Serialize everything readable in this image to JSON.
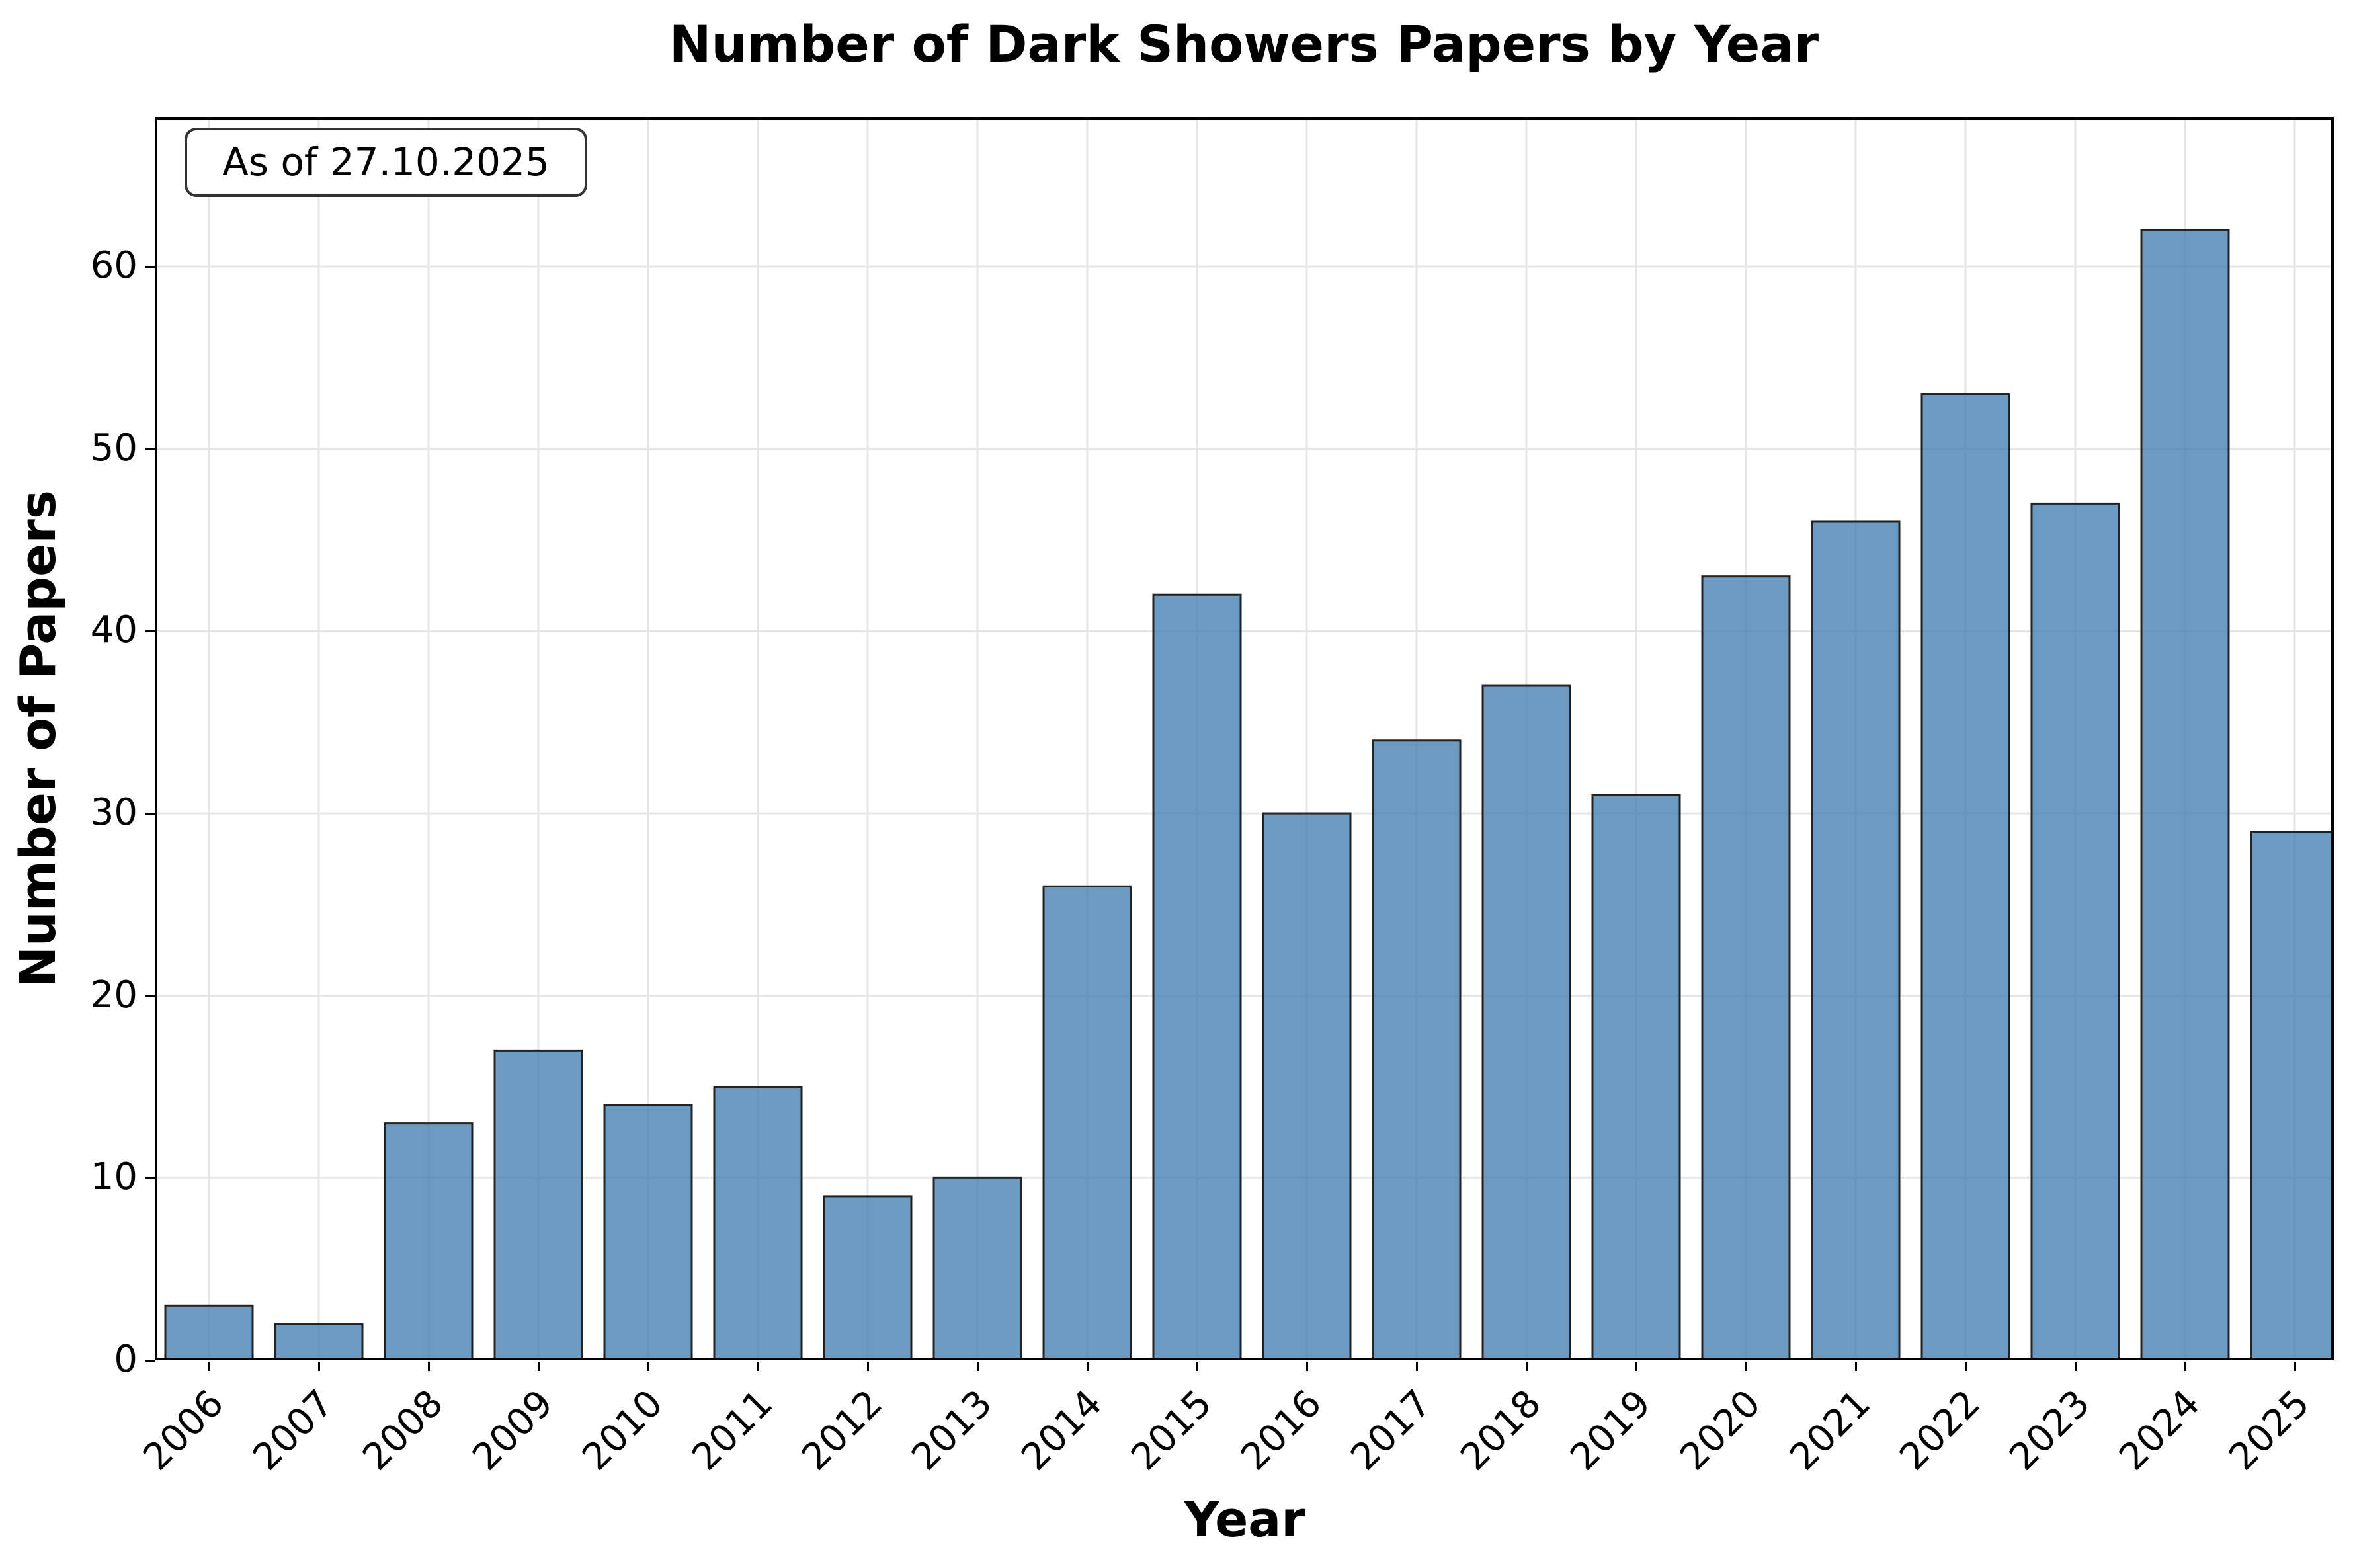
{
  "chart_data": {
    "type": "bar",
    "title": "Number of Dark Showers Papers by Year",
    "xlabel": "Year",
    "ylabel": "Number of Papers",
    "categories": [
      "2006",
      "2007",
      "2008",
      "2009",
      "2010",
      "2011",
      "2012",
      "2013",
      "2014",
      "2015",
      "2016",
      "2017",
      "2018",
      "2019",
      "2020",
      "2021",
      "2022",
      "2023",
      "2024",
      "2025"
    ],
    "values": [
      3,
      2,
      13,
      17,
      14,
      15,
      9,
      10,
      26,
      42,
      30,
      34,
      37,
      31,
      43,
      46,
      53,
      47,
      62,
      29
    ],
    "ylim": [
      0,
      68.2
    ],
    "yticks": [
      0,
      10,
      20,
      30,
      40,
      50,
      60
    ],
    "grid": true,
    "legend": null,
    "annotation": "As of 27.10.2025",
    "bar_color": "#4682b4",
    "bar_alpha": 0.8,
    "bar_edge_color": "#000000",
    "xtick_rotation": 45
  }
}
